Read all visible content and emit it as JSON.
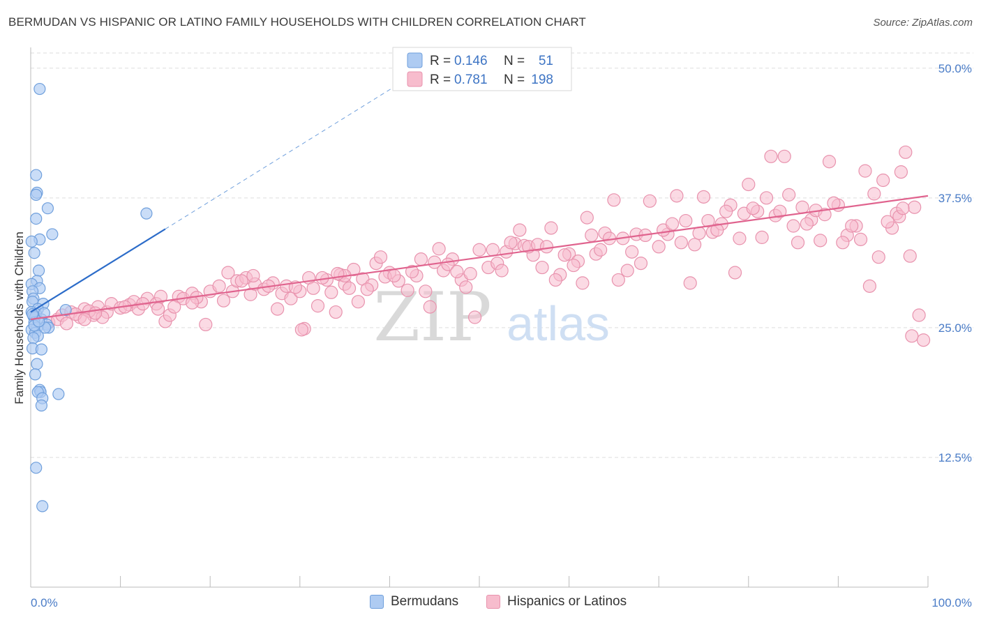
{
  "title": "BERMUDAN VS HISPANIC OR LATINO FAMILY HOUSEHOLDS WITH CHILDREN CORRELATION CHART",
  "source": "Source: ZipAtlas.com",
  "watermark": {
    "zip": "ZIP",
    "atlas": "atlas"
  },
  "colors": {
    "blue_fill": "#aecbf2",
    "blue_stroke": "#6f9fdc",
    "blue_line": "#2c6cc9",
    "pink_fill": "#f7bccd",
    "pink_stroke": "#e892ad",
    "pink_line": "#e0638e",
    "tick_text": "#4a7cc7",
    "grid": "#dddddd"
  },
  "legend": {
    "rows": [
      {
        "r_label": "R =",
        "r_value": "0.146",
        "n_label": "N =",
        "n_value": "51"
      },
      {
        "r_label": "R =",
        "r_value": "0.781",
        "n_label": "N =",
        "n_value": "198"
      }
    ]
  },
  "bottom_legend": {
    "items": [
      "Bermudans",
      "Hispanics or Latinos"
    ]
  },
  "chart_data": {
    "type": "scatter",
    "title": "BERMUDAN VS HISPANIC OR LATINO FAMILY HOUSEHOLDS WITH CHILDREN CORRELATION CHART",
    "xlabel": "",
    "ylabel": "Family Households with Children",
    "xlim": [
      0,
      100
    ],
    "ylim": [
      0,
      52
    ],
    "x_tick_labels": [
      "0.0%",
      "100.0%"
    ],
    "y_ticks": [
      12.5,
      25.0,
      37.5,
      50.0
    ],
    "y_tick_labels": [
      "12.5%",
      "25.0%",
      "37.5%",
      "50.0%"
    ],
    "grid": true,
    "legend_position": "top-center",
    "series": [
      {
        "name": "Bermudans",
        "R": 0.146,
        "N": 51,
        "trend": {
          "x0": 0,
          "y0": 26.5,
          "x1": 15,
          "y1": 34.5,
          "dashed_to_x": 42,
          "dashed_to_y": 49
        },
        "points": [
          [
            1.0,
            48.0
          ],
          [
            0.6,
            39.7
          ],
          [
            0.7,
            38.0
          ],
          [
            0.6,
            37.8
          ],
          [
            1.9,
            36.5
          ],
          [
            12.9,
            36.0
          ],
          [
            0.6,
            35.5
          ],
          [
            2.4,
            34.0
          ],
          [
            1.0,
            33.5
          ],
          [
            0.1,
            33.3
          ],
          [
            0.4,
            32.2
          ],
          [
            0.9,
            30.5
          ],
          [
            0.7,
            29.5
          ],
          [
            0.1,
            29.2
          ],
          [
            1.0,
            28.8
          ],
          [
            0.2,
            28.5
          ],
          [
            0.3,
            27.8
          ],
          [
            1.4,
            27.3
          ],
          [
            0.2,
            27.5
          ],
          [
            0.8,
            26.8
          ],
          [
            0.1,
            26.5
          ],
          [
            0.6,
            26.3
          ],
          [
            0.3,
            26.1
          ],
          [
            0.5,
            26.0
          ],
          [
            1.2,
            25.8
          ],
          [
            0.4,
            25.5
          ],
          [
            1.8,
            25.3
          ],
          [
            2.0,
            25.0
          ],
          [
            0.7,
            25.0
          ],
          [
            0.1,
            24.8
          ],
          [
            0.5,
            24.5
          ],
          [
            0.8,
            24.2
          ],
          [
            0.3,
            24.0
          ],
          [
            0.2,
            23.0
          ],
          [
            1.2,
            22.9
          ],
          [
            0.7,
            21.5
          ],
          [
            0.5,
            20.5
          ],
          [
            1.0,
            19.0
          ],
          [
            1.1,
            18.8
          ],
          [
            0.8,
            18.8
          ],
          [
            3.1,
            18.6
          ],
          [
            1.3,
            18.2
          ],
          [
            1.2,
            17.5
          ],
          [
            0.6,
            11.5
          ],
          [
            1.3,
            7.8
          ],
          [
            3.9,
            26.7
          ],
          [
            0.4,
            25.2
          ],
          [
            1.6,
            25.0
          ],
          [
            0.9,
            25.6
          ],
          [
            0.2,
            26.3
          ],
          [
            1.5,
            26.4
          ]
        ]
      },
      {
        "name": "Hispanics or Latinos",
        "R": 0.781,
        "N": 198,
        "trend": {
          "x0": 0,
          "y0": 25.8,
          "x1": 100,
          "y1": 37.7
        },
        "points": [
          [
            2.0,
            25.5
          ],
          [
            3.0,
            25.8
          ],
          [
            3.5,
            26.2
          ],
          [
            4.5,
            26.5
          ],
          [
            5.5,
            26.0
          ],
          [
            6.0,
            26.8
          ],
          [
            7.0,
            26.2
          ],
          [
            7.5,
            27.0
          ],
          [
            8.5,
            26.5
          ],
          [
            9.0,
            27.3
          ],
          [
            10.0,
            26.9
          ],
          [
            11.0,
            27.2
          ],
          [
            11.5,
            27.5
          ],
          [
            12.0,
            26.8
          ],
          [
            13.0,
            27.8
          ],
          [
            14.0,
            27.3
          ],
          [
            14.5,
            28.0
          ],
          [
            15.0,
            25.6
          ],
          [
            15.5,
            26.2
          ],
          [
            16.5,
            28.0
          ],
          [
            17.0,
            27.8
          ],
          [
            18.0,
            28.3
          ],
          [
            19.0,
            27.5
          ],
          [
            19.5,
            25.3
          ],
          [
            20.0,
            28.5
          ],
          [
            21.0,
            29.0
          ],
          [
            22.0,
            30.3
          ],
          [
            22.5,
            28.5
          ],
          [
            23.0,
            29.5
          ],
          [
            24.0,
            29.8
          ],
          [
            24.5,
            28.2
          ],
          [
            25.0,
            29.2
          ],
          [
            26.0,
            28.7
          ],
          [
            27.0,
            29.3
          ],
          [
            27.5,
            26.8
          ],
          [
            28.0,
            28.3
          ],
          [
            28.5,
            29.0
          ],
          [
            29.0,
            27.8
          ],
          [
            30.0,
            28.5
          ],
          [
            31.0,
            29.8
          ],
          [
            32.0,
            27.1
          ],
          [
            33.0,
            29.6
          ],
          [
            33.5,
            28.4
          ],
          [
            34.0,
            26.5
          ],
          [
            34.5,
            30.1
          ],
          [
            35.0,
            29.2
          ],
          [
            35.5,
            28.8
          ],
          [
            36.0,
            30.6
          ],
          [
            36.5,
            27.5
          ],
          [
            37.0,
            29.7
          ],
          [
            38.0,
            29.1
          ],
          [
            38.5,
            31.2
          ],
          [
            39.0,
            31.8
          ],
          [
            40.0,
            30.3
          ],
          [
            41.0,
            29.5
          ],
          [
            42.0,
            28.6
          ],
          [
            43.0,
            30.0
          ],
          [
            44.0,
            28.5
          ],
          [
            45.0,
            31.3
          ],
          [
            45.5,
            32.6
          ],
          [
            46.0,
            30.5
          ],
          [
            47.0,
            31.6
          ],
          [
            48.0,
            29.6
          ],
          [
            49.0,
            30.2
          ],
          [
            50.0,
            32.5
          ],
          [
            51.0,
            30.8
          ],
          [
            52.0,
            31.2
          ],
          [
            53.0,
            32.3
          ],
          [
            54.0,
            33.1
          ],
          [
            54.5,
            34.4
          ],
          [
            55.0,
            32.9
          ],
          [
            56.0,
            32.0
          ],
          [
            57.0,
            30.8
          ],
          [
            58.0,
            34.6
          ],
          [
            59.0,
            30.1
          ],
          [
            60.0,
            32.1
          ],
          [
            61.0,
            31.4
          ],
          [
            62.0,
            35.6
          ],
          [
            63.0,
            32.1
          ],
          [
            64.0,
            34.1
          ],
          [
            65.0,
            37.3
          ],
          [
            66.0,
            33.6
          ],
          [
            67.0,
            32.3
          ],
          [
            67.5,
            34.0
          ],
          [
            68.0,
            31.2
          ],
          [
            69.0,
            37.2
          ],
          [
            70.0,
            32.8
          ],
          [
            71.0,
            34.0
          ],
          [
            72.0,
            37.7
          ],
          [
            73.0,
            35.3
          ],
          [
            74.0,
            33.0
          ],
          [
            75.0,
            37.6
          ],
          [
            76.0,
            34.2
          ],
          [
            77.0,
            35.0
          ],
          [
            78.0,
            36.8
          ],
          [
            78.5,
            30.3
          ],
          [
            79.0,
            33.6
          ],
          [
            80.0,
            38.8
          ],
          [
            81.0,
            36.2
          ],
          [
            82.0,
            37.5
          ],
          [
            82.5,
            41.5
          ],
          [
            83.0,
            35.8
          ],
          [
            84.0,
            41.5
          ],
          [
            85.0,
            34.8
          ],
          [
            86.0,
            36.6
          ],
          [
            87.0,
            35.4
          ],
          [
            88.0,
            33.4
          ],
          [
            89.0,
            41.0
          ],
          [
            90.0,
            36.8
          ],
          [
            91.0,
            33.9
          ],
          [
            92.0,
            34.8
          ],
          [
            93.0,
            40.1
          ],
          [
            94.0,
            37.9
          ],
          [
            94.5,
            31.8
          ],
          [
            95.0,
            39.2
          ],
          [
            96.0,
            34.6
          ],
          [
            96.5,
            36.0
          ],
          [
            97.0,
            40.0
          ],
          [
            97.5,
            41.9
          ],
          [
            98.0,
            31.9
          ],
          [
            98.5,
            36.6
          ],
          [
            99.0,
            26.2
          ],
          [
            99.5,
            23.8
          ],
          [
            12.5,
            27.3
          ],
          [
            8.0,
            26.0
          ],
          [
            6.5,
            26.6
          ],
          [
            10.5,
            27.0
          ],
          [
            16.0,
            27.0
          ],
          [
            18.5,
            27.9
          ],
          [
            21.5,
            27.6
          ],
          [
            23.5,
            29.5
          ],
          [
            26.5,
            29.0
          ],
          [
            29.5,
            28.9
          ],
          [
            30.5,
            24.9
          ],
          [
            31.5,
            28.8
          ],
          [
            32.5,
            29.8
          ],
          [
            35.0,
            30.0
          ],
          [
            37.5,
            28.7
          ],
          [
            39.5,
            29.9
          ],
          [
            40.5,
            30.0
          ],
          [
            42.5,
            30.4
          ],
          [
            43.5,
            31.6
          ],
          [
            44.5,
            27.0
          ],
          [
            46.5,
            31.1
          ],
          [
            47.5,
            30.4
          ],
          [
            48.5,
            28.9
          ],
          [
            49.5,
            26.0
          ],
          [
            51.5,
            32.5
          ],
          [
            52.5,
            30.5
          ],
          [
            53.5,
            33.2
          ],
          [
            55.5,
            32.8
          ],
          [
            56.5,
            33.0
          ],
          [
            57.5,
            32.8
          ],
          [
            58.5,
            29.6
          ],
          [
            59.5,
            32.0
          ],
          [
            60.5,
            31.0
          ],
          [
            61.5,
            29.3
          ],
          [
            62.5,
            33.9
          ],
          [
            63.5,
            32.5
          ],
          [
            64.5,
            33.6
          ],
          [
            65.5,
            29.6
          ],
          [
            66.5,
            30.5
          ],
          [
            68.5,
            33.9
          ],
          [
            70.5,
            34.4
          ],
          [
            71.5,
            35.0
          ],
          [
            72.5,
            33.2
          ],
          [
            73.5,
            29.3
          ],
          [
            74.5,
            34.1
          ],
          [
            75.5,
            35.3
          ],
          [
            76.5,
            34.4
          ],
          [
            77.5,
            36.2
          ],
          [
            79.5,
            36.0
          ],
          [
            80.5,
            36.5
          ],
          [
            81.5,
            33.7
          ],
          [
            83.5,
            36.2
          ],
          [
            84.5,
            37.8
          ],
          [
            85.5,
            33.2
          ],
          [
            86.5,
            35.0
          ],
          [
            87.5,
            36.3
          ],
          [
            88.5,
            35.9
          ],
          [
            89.5,
            37.0
          ],
          [
            90.5,
            33.2
          ],
          [
            91.5,
            34.8
          ],
          [
            92.5,
            33.5
          ],
          [
            93.5,
            29.0
          ],
          [
            95.5,
            35.2
          ],
          [
            96.8,
            35.7
          ],
          [
            97.2,
            36.5
          ],
          [
            98.2,
            24.2
          ],
          [
            30.2,
            24.8
          ],
          [
            34.2,
            30.2
          ],
          [
            18.0,
            27.4
          ],
          [
            14.2,
            26.8
          ],
          [
            24.8,
            30.0
          ],
          [
            4.0,
            25.4
          ],
          [
            5.0,
            26.3
          ],
          [
            6.0,
            25.8
          ],
          [
            7.2,
            26.4
          ]
        ]
      }
    ]
  }
}
